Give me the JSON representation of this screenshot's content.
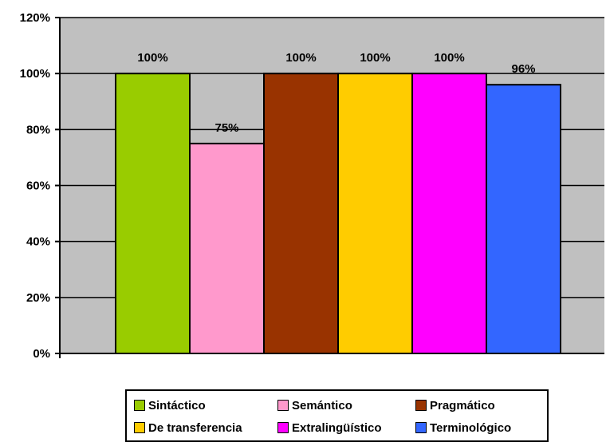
{
  "chart_data": {
    "type": "bar",
    "title": "",
    "xlabel": "",
    "ylabel": "",
    "ylim": [
      0,
      120
    ],
    "yticks": [
      "0%",
      "20%",
      "40%",
      "60%",
      "80%",
      "100%",
      "120%"
    ],
    "grid": true,
    "plot_background": "#c0c0c0",
    "legend_position": "bottom",
    "series": [
      {
        "name": "Sintáctico",
        "value": 100,
        "label": "100%",
        "color": "#99cc00"
      },
      {
        "name": "Semántico",
        "value": 75,
        "label": "75%",
        "color": "#ff99cc"
      },
      {
        "name": "Pragmático",
        "value": 100,
        "label": "100%",
        "color": "#993300"
      },
      {
        "name": "De transferencia",
        "value": 100,
        "label": "100%",
        "color": "#ffcc00"
      },
      {
        "name": "Extralingüístico",
        "value": 100,
        "label": "100%",
        "color": "#ff00ff"
      },
      {
        "name": "Terminológico",
        "value": 96,
        "label": "96%",
        "color": "#3366ff"
      }
    ]
  }
}
